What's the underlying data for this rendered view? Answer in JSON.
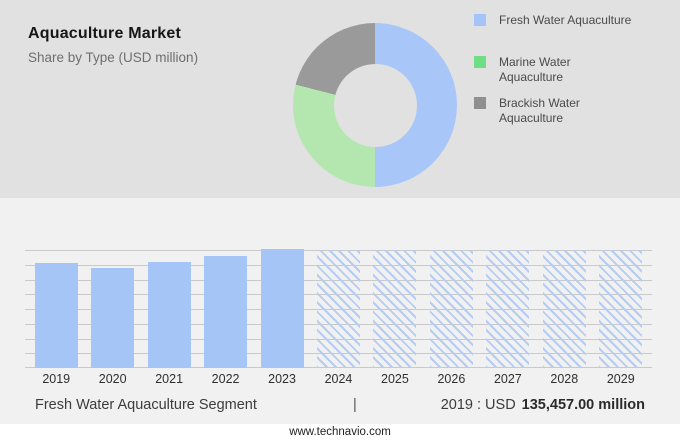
{
  "header": {
    "title": "Aquaculture Market",
    "subtitle": "Share by Type (USD million)"
  },
  "chart_data": [
    {
      "type": "pie",
      "style": "donut",
      "title": "Share by Type (USD million)",
      "labels": [
        "Fresh Water Aquaculture",
        "Marine Water Aquaculture",
        "Brackish Water Aquaculture"
      ],
      "values_pct_estimated": [
        50,
        29,
        21
      ],
      "colors": [
        "#a8c6f8",
        "#b4e7af",
        "#9a9a9a"
      ],
      "start_angle_deg": 0,
      "direction": "clockwise",
      "legend_position": "right",
      "legend_swatch_colors": [
        "#a3c3f9",
        "#6fdd83",
        "#8f8f8f"
      ],
      "legend_lines": [
        [
          "Fresh Water Aquaculture"
        ],
        [
          "Marine Water",
          "Aquaculture"
        ],
        [
          "Brackish Water",
          "Aquaculture"
        ]
      ]
    },
    {
      "type": "bar",
      "categories": [
        "2019",
        "2020",
        "2021",
        "2022",
        "2023",
        "2024",
        "2025",
        "2026",
        "2027",
        "2028",
        "2029"
      ],
      "values": [
        135457,
        128400,
        136750,
        144500,
        153500,
        null,
        null,
        null,
        null,
        null,
        null
      ],
      "values_note": "2019 labeled as USD 135,457.00 million; 2020-2023 estimated from bar heights; 2024-2029 are forecast years drawn as full-height hatched bars with no labeled values",
      "forecast_from": "2024",
      "ylim": [
        0,
        152200
      ],
      "ylabel": "",
      "xlabel": "",
      "grid": "horizontal",
      "gridline_count": 9,
      "bar_color": "#a5c5f7",
      "hatch_color": "#b5ccf3",
      "annotation": "2019 : USD 135,457.00 million"
    }
  ],
  "caption": {
    "left": "Fresh Water Aquaculture Segment",
    "divider": "|",
    "prefix": "2019 : USD",
    "value": "135,457.00 million"
  },
  "footer": {
    "url": "www.technavio.com"
  }
}
